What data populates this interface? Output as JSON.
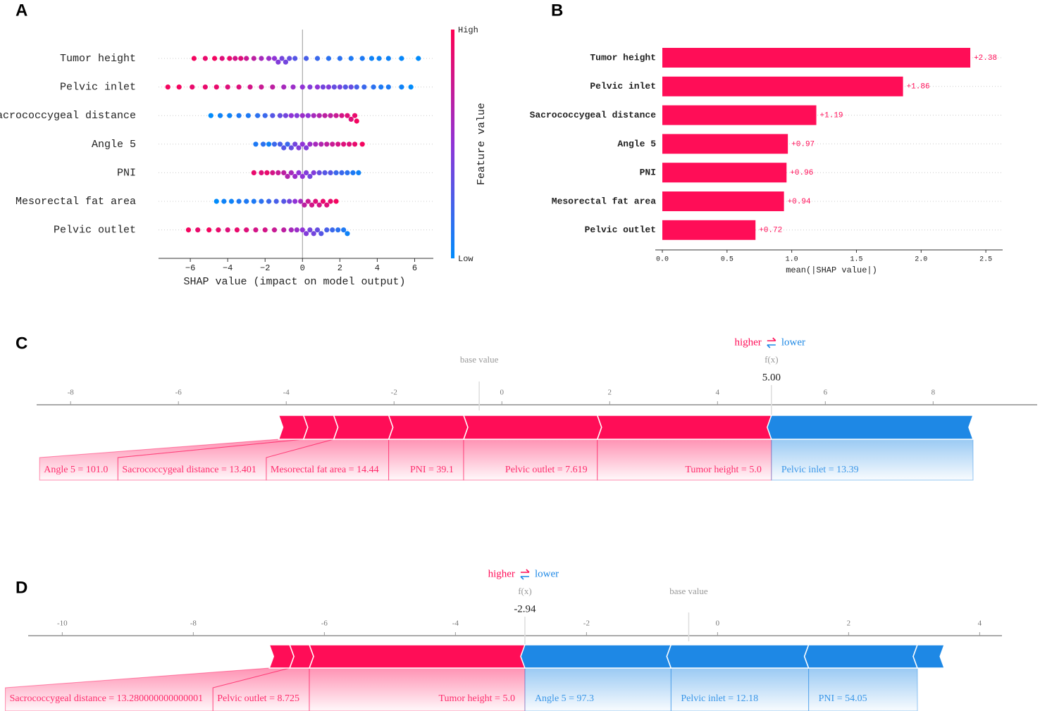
{
  "chart_data": [
    {
      "type": "beeswarm",
      "panel": "A",
      "categories": [
        "Tumor height",
        "Pelvic inlet",
        "Sacrococcygeal distance",
        "Angle 5",
        "PNI",
        "Mesorectal fat area",
        "Pelvic outlet"
      ],
      "values": [
        [
          -5.8,
          -5.2,
          -4.7,
          -4.3,
          -3.9,
          -3.6,
          -3.3,
          -3.0,
          -2.6,
          -2.2,
          -1.8,
          -1.5,
          -1.3,
          -1.1,
          -0.9,
          -0.7,
          -0.4,
          0.2,
          0.8,
          1.4,
          2.0,
          2.6,
          3.2,
          3.7,
          4.1,
          4.6,
          5.3,
          6.2
        ],
        [
          -7.2,
          -6.6,
          -5.9,
          -5.2,
          -4.6,
          -4.0,
          -3.4,
          -2.8,
          -2.2,
          -1.6,
          -1.0,
          -0.5,
          0.0,
          0.4,
          0.8,
          1.1,
          1.4,
          1.7,
          2.0,
          2.3,
          2.6,
          2.9,
          3.3,
          3.8,
          4.2,
          4.6,
          5.3,
          5.8
        ],
        [
          -4.9,
          -4.4,
          -3.9,
          -3.4,
          -2.9,
          -2.4,
          -2.0,
          -1.6,
          -1.2,
          -0.9,
          -0.6,
          -0.3,
          0.0,
          0.3,
          0.6,
          0.9,
          1.2,
          1.5,
          1.8,
          2.1,
          2.4,
          2.6,
          2.8,
          2.9
        ],
        [
          -2.5,
          -2.1,
          -1.8,
          -1.5,
          -1.2,
          -1.0,
          -0.8,
          -0.6,
          -0.4,
          -0.2,
          0.0,
          0.2,
          0.4,
          0.7,
          1.0,
          1.3,
          1.6,
          1.9,
          2.2,
          2.5,
          2.8,
          3.2
        ],
        [
          -2.6,
          -2.2,
          -1.9,
          -1.6,
          -1.3,
          -1.0,
          -0.8,
          -0.6,
          -0.4,
          -0.2,
          0.0,
          0.2,
          0.4,
          0.6,
          0.9,
          1.2,
          1.5,
          1.8,
          2.1,
          2.4,
          2.7,
          3.0
        ],
        [
          -4.6,
          -4.2,
          -3.8,
          -3.4,
          -3.0,
          -2.6,
          -2.2,
          -1.8,
          -1.4,
          -1.0,
          -0.7,
          -0.4,
          -0.1,
          0.1,
          0.3,
          0.5,
          0.7,
          0.9,
          1.1,
          1.3,
          1.5,
          1.8
        ],
        [
          -6.1,
          -5.6,
          -5.0,
          -4.5,
          -4.0,
          -3.5,
          -3.0,
          -2.5,
          -2.0,
          -1.5,
          -1.0,
          -0.6,
          -0.3,
          0.0,
          0.2,
          0.4,
          0.6,
          0.8,
          1.0,
          1.3,
          1.6,
          1.9,
          2.2,
          2.4
        ]
      ],
      "feature_values": [
        [
          0.95,
          0.9,
          0.95,
          0.85,
          0.9,
          0.8,
          0.85,
          0.75,
          0.7,
          0.6,
          0.55,
          0.5,
          0.45,
          0.4,
          0.4,
          0.35,
          0.3,
          0.25,
          0.2,
          0.15,
          0.15,
          0.1,
          0.1,
          0.05,
          0.05,
          0.05,
          0.02,
          0.0
        ],
        [
          0.95,
          0.95,
          0.9,
          0.9,
          0.9,
          0.85,
          0.85,
          0.8,
          0.75,
          0.7,
          0.6,
          0.55,
          0.5,
          0.45,
          0.5,
          0.4,
          0.45,
          0.35,
          0.4,
          0.3,
          0.35,
          0.25,
          0.2,
          0.15,
          0.1,
          0.1,
          0.05,
          0.0
        ],
        [
          0.0,
          0.05,
          0.05,
          0.1,
          0.1,
          0.15,
          0.2,
          0.3,
          0.35,
          0.4,
          0.5,
          0.45,
          0.55,
          0.5,
          0.6,
          0.65,
          0.7,
          0.7,
          0.75,
          0.8,
          0.85,
          0.85,
          0.9,
          0.95
        ],
        [
          0.1,
          0.15,
          0.05,
          0.2,
          0.25,
          0.3,
          0.2,
          0.35,
          0.4,
          0.45,
          0.5,
          0.45,
          0.55,
          0.6,
          0.65,
          0.7,
          0.75,
          0.8,
          0.85,
          0.85,
          0.9,
          0.95
        ],
        [
          0.9,
          0.85,
          0.9,
          0.8,
          0.75,
          0.7,
          0.65,
          0.6,
          0.55,
          0.5,
          0.5,
          0.45,
          0.4,
          0.45,
          0.35,
          0.3,
          0.3,
          0.2,
          0.2,
          0.15,
          0.1,
          0.05
        ],
        [
          0.0,
          0.05,
          0.05,
          0.1,
          0.1,
          0.1,
          0.15,
          0.2,
          0.25,
          0.3,
          0.4,
          0.5,
          0.6,
          0.7,
          0.75,
          0.8,
          0.85,
          0.8,
          0.9,
          0.85,
          0.9,
          0.95
        ],
        [
          0.95,
          0.9,
          0.95,
          0.9,
          0.85,
          0.9,
          0.85,
          0.8,
          0.8,
          0.75,
          0.7,
          0.6,
          0.55,
          0.5,
          0.45,
          0.4,
          0.4,
          0.35,
          0.3,
          0.25,
          0.2,
          0.15,
          0.1,
          0.05
        ]
      ],
      "colormap": [
        "#008bfb",
        "#9033d6",
        "#ff0052"
      ],
      "colorbar": {
        "label": "Feature value",
        "high": "High",
        "low": "Low"
      },
      "xlabel": "SHAP value (impact on model output)",
      "xlim": [
        -7.7,
        7.0
      ],
      "xticks": [
        {
          "value": -6,
          "label": "−6"
        },
        {
          "value": -4,
          "label": "−4"
        },
        {
          "value": -2,
          "label": "−2"
        },
        0,
        2,
        4,
        6
      ]
    },
    {
      "type": "hbar",
      "panel": "B",
      "categories": [
        "Tumor height",
        "Pelvic inlet",
        "Sacrococcygeal distance",
        "Angle 5",
        "PNI",
        "Mesorectal fat area",
        "Pelvic outlet"
      ],
      "values": [
        2.38,
        1.86,
        1.19,
        0.97,
        0.96,
        0.94,
        0.72
      ],
      "value_labels": [
        "+2.38",
        "+1.86",
        "+1.19",
        "+0.97",
        "+0.96",
        "+0.94",
        "+0.72"
      ],
      "color": "#ff0d57",
      "xlabel": "mean(|SHAP value|)",
      "xlim": [
        0,
        2.63
      ],
      "xticks": [
        {
          "value": 0,
          "label": "0.0"
        },
        0.5,
        {
          "value": 1,
          "label": "1.0"
        },
        1.5,
        {
          "value": 2,
          "label": "2.0"
        },
        2.5
      ]
    },
    {
      "type": "force",
      "panel": "C",
      "higher_label": "higher",
      "lower_label": "lower",
      "colors": {
        "higher": "#ff0d57",
        "lower": "#1e88e5"
      },
      "base_label": "base value",
      "base_value": -0.42,
      "fx_label": "f(x)",
      "fx": 5.0,
      "fx_value_label": "5.00",
      "features": [
        {
          "name": "Angle 5 = 101.0",
          "value": 0.46
        },
        {
          "name": "Sacrococcygeal distance = 13.401",
          "value": 0.56
        },
        {
          "name": "Mesorectal fat area = 14.44",
          "value": 1.02
        },
        {
          "name": "PNI = 39.1",
          "value": 1.39
        },
        {
          "name": "Pelvic outlet = 7.619",
          "value": 2.48
        },
        {
          "name": "Tumor height = 5.0",
          "value": 3.23
        },
        {
          "name": "Pelvic inlet = 13.39",
          "value": -3.74
        }
      ],
      "xlim": [
        -8.63,
        9.93
      ],
      "xticks": [
        -8,
        -6,
        -4,
        -2,
        0,
        2,
        4,
        6,
        8
      ]
    },
    {
      "type": "force",
      "panel": "D",
      "higher_label": "higher",
      "lower_label": "lower",
      "colors": {
        "higher": "#ff0d57",
        "lower": "#1e88e5"
      },
      "base_label": "base value",
      "base_value": -0.44,
      "fx_label": "f(x)",
      "fx": -2.94,
      "features": [
        {
          "name": "Sacrococcygeal distance = 13.280000000000001",
          "value": 0.31
        },
        {
          "name": "Pelvic outlet = 8.725",
          "value": 0.3
        },
        {
          "name": "Tumor height = 5.0",
          "value": 3.29
        },
        {
          "name": "Angle 5 = 97.3",
          "value": -2.23
        },
        {
          "name": "Pelvic inlet = 12.18",
          "value": -2.1
        },
        {
          "name": "PNI = 54.05",
          "value": -1.66
        },
        {
          "name": null,
          "value": -0.41
        }
      ],
      "xlim": [
        -10.52,
        4.34
      ],
      "xticks": [
        -10,
        -8,
        -6,
        -4,
        -2,
        0,
        2,
        4
      ]
    }
  ]
}
